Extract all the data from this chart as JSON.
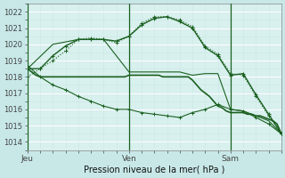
{
  "title": "Pression niveau de la mer( hPa )",
  "fig_bg_color": "#c8e8e8",
  "plot_bg_color": "#d8f0ee",
  "grid_major_color": "#ffffff",
  "grid_minor_color": "#c8e8e4",
  "line_color": "#1a6020",
  "vline_color": "#1a6020",
  "ylim": [
    1013.5,
    1022.5
  ],
  "yticks": [
    1014,
    1015,
    1016,
    1017,
    1018,
    1019,
    1020,
    1021,
    1022
  ],
  "day_labels": [
    "Jeu",
    "Ven",
    "Sam"
  ],
  "day_positions": [
    0,
    48,
    96
  ],
  "total_steps": 120,
  "line1_x": [
    0,
    2,
    4,
    6,
    8,
    10,
    12,
    14,
    16,
    18,
    20,
    22,
    24,
    26,
    28,
    30,
    32,
    34,
    36,
    38,
    40,
    42,
    44,
    46,
    48,
    50,
    52,
    54,
    56,
    58,
    60,
    62,
    64,
    66,
    68,
    70,
    72,
    74,
    76,
    78,
    80,
    82,
    84,
    86,
    88,
    90,
    92,
    94,
    96,
    98,
    100,
    102,
    104,
    106,
    108,
    110,
    112,
    114,
    116,
    118,
    120
  ],
  "line1_y": [
    1018.5,
    1018.3,
    1018.1,
    1018.0,
    1018.0,
    1018.0,
    1018.0,
    1018.0,
    1018.0,
    1018.0,
    1018.0,
    1018.0,
    1018.0,
    1018.0,
    1018.0,
    1018.0,
    1018.0,
    1018.0,
    1018.0,
    1018.0,
    1018.0,
    1018.0,
    1018.0,
    1018.0,
    1018.1,
    1018.1,
    1018.1,
    1018.1,
    1018.1,
    1018.1,
    1018.1,
    1018.1,
    1018.0,
    1018.0,
    1018.0,
    1018.0,
    1018.0,
    1018.0,
    1018.0,
    1017.8,
    1017.5,
    1017.2,
    1017.0,
    1016.8,
    1016.5,
    1016.2,
    1016.1,
    1015.9,
    1015.8,
    1015.8,
    1015.8,
    1015.8,
    1015.7,
    1015.7,
    1015.6,
    1015.6,
    1015.5,
    1015.4,
    1015.3,
    1015.1,
    1014.5
  ],
  "line2_x": [
    0,
    6,
    12,
    18,
    24,
    30,
    36,
    42,
    48,
    54,
    60,
    66,
    72,
    78,
    84,
    90,
    96,
    102,
    108,
    114,
    120
  ],
  "line2_y": [
    1018.5,
    1018.5,
    1019.3,
    1019.9,
    1020.3,
    1020.3,
    1020.3,
    1020.2,
    1020.5,
    1021.2,
    1021.6,
    1021.7,
    1021.4,
    1021.0,
    1019.8,
    1019.3,
    1018.1,
    1018.2,
    1016.9,
    1015.7,
    1014.5
  ],
  "line3_x": [
    0,
    6,
    12,
    18,
    24,
    30,
    36,
    42,
    48,
    54,
    60,
    66,
    72,
    78,
    84,
    90,
    96,
    102,
    108,
    114,
    120
  ],
  "line3_y": [
    1018.0,
    1018.5,
    1019.0,
    1019.6,
    1020.3,
    1020.4,
    1020.3,
    1020.1,
    1020.5,
    1021.3,
    1021.7,
    1021.7,
    1021.5,
    1021.1,
    1019.9,
    1019.4,
    1018.2,
    1018.1,
    1016.8,
    1015.6,
    1014.5
  ],
  "line4_x": [
    0,
    6,
    12,
    18,
    24,
    30,
    36,
    42,
    48,
    54,
    60,
    66,
    72,
    78,
    84,
    90,
    96,
    102,
    108,
    114,
    120
  ],
  "line4_y": [
    1018.7,
    1018.0,
    1017.5,
    1017.2,
    1016.8,
    1016.5,
    1016.2,
    1016.0,
    1016.0,
    1015.8,
    1015.7,
    1015.6,
    1015.5,
    1015.8,
    1016.0,
    1016.3,
    1016.0,
    1015.9,
    1015.5,
    1015.1,
    1014.5
  ],
  "line5_x": [
    0,
    12,
    24,
    36,
    48,
    60,
    66,
    72,
    78,
    84,
    90,
    96,
    102,
    108,
    114,
    120
  ],
  "line5_y": [
    1018.5,
    1020.0,
    1020.3,
    1020.3,
    1018.3,
    1018.3,
    1018.3,
    1018.3,
    1018.1,
    1018.2,
    1018.2,
    1016.0,
    1015.9,
    1015.6,
    1015.3,
    1014.5
  ]
}
